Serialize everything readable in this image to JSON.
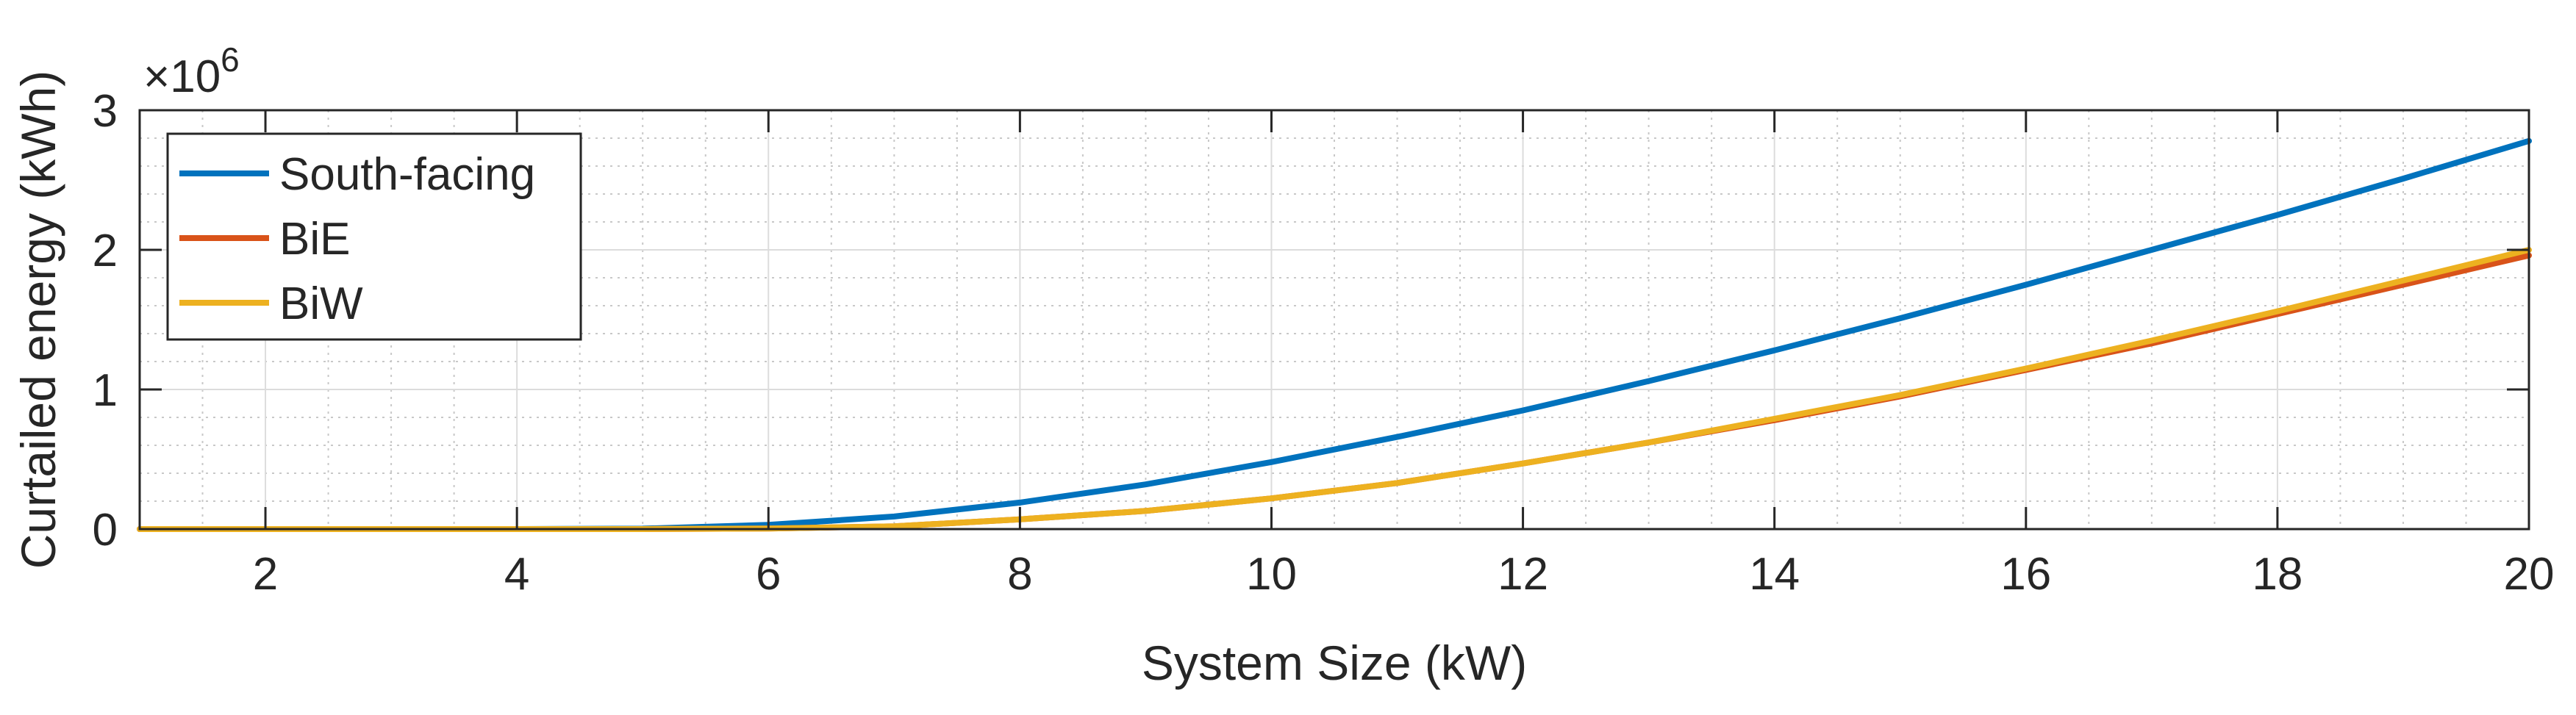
{
  "chart_data": {
    "type": "line",
    "xlabel": "System Size (kW)",
    "ylabel": "Curtailed energy (kWh)",
    "y_exponent_label": "×10",
    "y_exponent_power": "6",
    "xlim": [
      1,
      20
    ],
    "ylim": [
      0,
      3
    ],
    "x_ticks": [
      2,
      4,
      6,
      8,
      10,
      12,
      14,
      16,
      18,
      20
    ],
    "y_ticks": [
      0,
      1,
      2,
      3
    ],
    "grid": true,
    "minor_grid": true,
    "legend_position": "top-left",
    "x": [
      1,
      2,
      3,
      4,
      5,
      6,
      7,
      8,
      9,
      10,
      11,
      12,
      13,
      14,
      15,
      16,
      17,
      18,
      19,
      20
    ],
    "series": [
      {
        "name": "South-facing",
        "color": "#0072BD",
        "values": [
          0,
          0,
          0,
          0,
          0.003,
          0.03,
          0.09,
          0.19,
          0.32,
          0.48,
          0.66,
          0.85,
          1.06,
          1.28,
          1.51,
          1.75,
          2.0,
          2.25,
          2.51,
          2.78
        ]
      },
      {
        "name": "BiE",
        "color": "#D95319",
        "values": [
          0,
          0,
          0,
          0,
          0,
          0.004,
          0.02,
          0.07,
          0.13,
          0.22,
          0.33,
          0.47,
          0.62,
          0.78,
          0.95,
          1.14,
          1.33,
          1.54,
          1.75,
          1.96
        ]
      },
      {
        "name": "BiW",
        "color": "#EDB120",
        "values": [
          0,
          0,
          0,
          0,
          0,
          0.004,
          0.02,
          0.07,
          0.13,
          0.22,
          0.33,
          0.47,
          0.62,
          0.79,
          0.96,
          1.15,
          1.35,
          1.56,
          1.78,
          2.0
        ]
      }
    ]
  }
}
